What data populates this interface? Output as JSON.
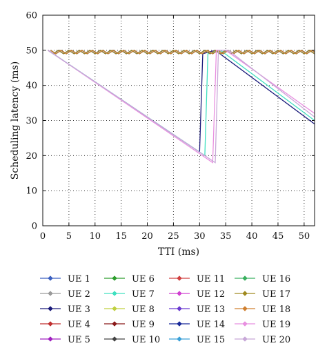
{
  "chart_data": {
    "type": "line",
    "title": "",
    "xlabel": "TTI (ms)",
    "ylabel": "Scheduling latency (ms)",
    "xlim": [
      0,
      52
    ],
    "ylim": [
      0,
      60
    ],
    "xticks": [
      0,
      5,
      10,
      15,
      20,
      25,
      30,
      35,
      40,
      45,
      50
    ],
    "yticks": [
      0,
      10,
      20,
      30,
      40,
      50,
      60
    ],
    "grid": true,
    "grid_style": "dotted",
    "legend_position": "below",
    "legend_columns": 4,
    "series": [
      {
        "name": "UE 1",
        "color": "#3b5fc0",
        "marker": "diamond",
        "kind": "steady_zigzag",
        "base": 50,
        "dip": 49
      },
      {
        "name": "UE 2",
        "color": "#9a9a9a",
        "marker": "diamond",
        "kind": "steady_zigzag",
        "base": 50,
        "dip": 49
      },
      {
        "name": "UE 3",
        "color": "#1a1a7a",
        "marker": "diamond",
        "kind": "drop",
        "x": [
          1,
          30,
          30.6,
          33,
          52
        ],
        "y": [
          50,
          21,
          49,
          50,
          29
        ]
      },
      {
        "name": "UE 4",
        "color": "#c03030",
        "marker": "diamond",
        "kind": "steady_zigzag",
        "base": 50,
        "dip": 49
      },
      {
        "name": "UE 5",
        "color": "#a020c0",
        "marker": "diamond",
        "kind": "steady_zigzag",
        "base": 50,
        "dip": 49
      },
      {
        "name": "UE 6",
        "color": "#2e9e2e",
        "marker": "diamond",
        "kind": "steady_zigzag",
        "base": 50,
        "dip": 49
      },
      {
        "name": "UE 7",
        "color": "#40e0c0",
        "marker": "diamond",
        "kind": "drop",
        "x": [
          1,
          31,
          31.6,
          34,
          52
        ],
        "y": [
          50,
          20,
          49,
          50,
          30
        ]
      },
      {
        "name": "UE 8",
        "color": "#c0d040",
        "marker": "diamond",
        "kind": "steady_zigzag",
        "base": 50,
        "dip": 49
      },
      {
        "name": "UE 9",
        "color": "#8b1a1a",
        "marker": "diamond",
        "kind": "steady_zigzag",
        "base": 50,
        "dip": 49
      },
      {
        "name": "UE 10",
        "color": "#444444",
        "marker": "diamond",
        "kind": "steady_zigzag",
        "base": 50,
        "dip": 49
      },
      {
        "name": "UE 11",
        "color": "#d04040",
        "marker": "diamond",
        "kind": "steady_zigzag",
        "base": 50,
        "dip": 49
      },
      {
        "name": "UE 12",
        "color": "#d040d0",
        "marker": "diamond",
        "kind": "steady_zigzag",
        "base": 50,
        "dip": 49
      },
      {
        "name": "UE 13",
        "color": "#6a3ad0",
        "marker": "diamond",
        "kind": "steady_zigzag",
        "base": 50,
        "dip": 49
      },
      {
        "name": "UE 14",
        "color": "#1a2a9a",
        "marker": "diamond",
        "kind": "steady_zigzag",
        "base": 50,
        "dip": 49
      },
      {
        "name": "UE 15",
        "color": "#3aa0d8",
        "marker": "diamond",
        "kind": "steady_zigzag",
        "base": 50,
        "dip": 49
      },
      {
        "name": "UE 16",
        "color": "#3ab060",
        "marker": "diamond",
        "kind": "steady_zigzag",
        "base": 50,
        "dip": 49
      },
      {
        "name": "UE 17",
        "color": "#a08a20",
        "marker": "diamond",
        "kind": "steady_zigzag",
        "base": 50,
        "dip": 49
      },
      {
        "name": "UE 18",
        "color": "#d08030",
        "marker": "diamond",
        "kind": "steady_zigzag",
        "base": 50,
        "dip": 49
      },
      {
        "name": "UE 19",
        "color": "#e890e0",
        "marker": "diamond",
        "kind": "drop",
        "x": [
          1,
          32.5,
          33.2,
          35,
          52
        ],
        "y": [
          50,
          18,
          50,
          50,
          32
        ]
      },
      {
        "name": "UE 20",
        "color": "#c8a8d8",
        "marker": "diamond",
        "kind": "drop",
        "x": [
          1,
          33,
          33.6,
          35.5,
          52
        ],
        "y": [
          50,
          18,
          50,
          50,
          31
        ]
      }
    ]
  }
}
